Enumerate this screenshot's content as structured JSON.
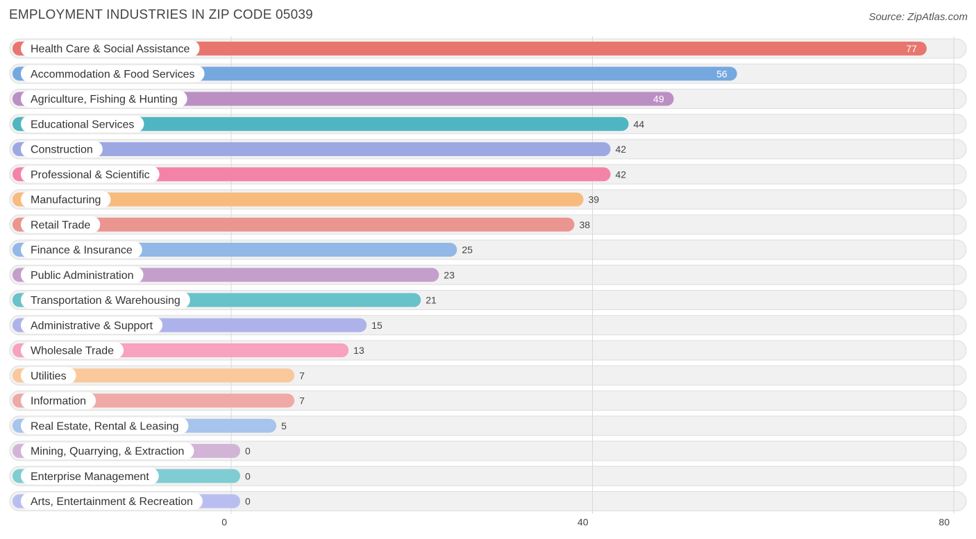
{
  "chart_data": {
    "type": "bar",
    "orientation": "horizontal",
    "title": "EMPLOYMENT INDUSTRIES IN ZIP CODE 05039",
    "source": "Source: ZipAtlas.com",
    "xlim": [
      0,
      80
    ],
    "ticks": [
      0,
      40,
      80
    ],
    "grid": true,
    "categories": [
      "Health Care & Social Assistance",
      "Accommodation & Food Services",
      "Agriculture, Fishing & Hunting",
      "Educational Services",
      "Construction",
      "Professional & Scientific",
      "Manufacturing",
      "Retail Trade",
      "Finance & Insurance",
      "Public Administration",
      "Transportation & Warehousing",
      "Administrative & Support",
      "Wholesale Trade",
      "Utilities",
      "Information",
      "Real Estate, Rental & Leasing",
      "Mining, Quarrying, & Extraction",
      "Enterprise Management",
      "Arts, Entertainment & Recreation"
    ],
    "values": [
      77,
      56,
      49,
      44,
      42,
      42,
      39,
      38,
      25,
      23,
      21,
      15,
      13,
      7,
      7,
      5,
      0,
      0,
      0
    ],
    "colors": [
      "#e8766f",
      "#76a8e0",
      "#bb8fc4",
      "#4fb5c1",
      "#9da8e3",
      "#f483a8",
      "#f8bb7e",
      "#ea9590",
      "#91b8e6",
      "#c49fcc",
      "#68c2c9",
      "#adb3ea",
      "#f7a2bf",
      "#f9c89b",
      "#efa9a6",
      "#a6c4ec",
      "#d2b4d7",
      "#7fcdd3",
      "#b8bff0"
    ]
  }
}
